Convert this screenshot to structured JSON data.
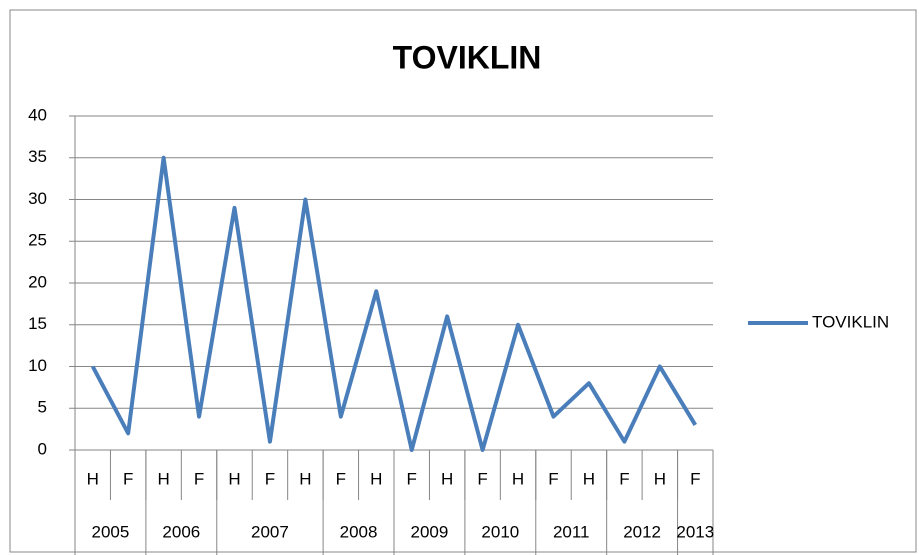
{
  "chart_data": {
    "type": "line",
    "title": "TOVIKLIN",
    "categories": [
      "H",
      "F",
      "H",
      "F",
      "H",
      "F",
      "H",
      "F",
      "H",
      "F",
      "H",
      "F",
      "H",
      "F",
      "H",
      "F",
      "H",
      "F"
    ],
    "category_groups": [
      "2005",
      null,
      "2006",
      null,
      "2007",
      null,
      null,
      "2008",
      null,
      "2009",
      null,
      "2010",
      null,
      "2011",
      null,
      "2012",
      null,
      "2013"
    ],
    "series": [
      {
        "name": "TOVIKLIN",
        "color": "#4a7ebb",
        "values": [
          10,
          2,
          35,
          4,
          29,
          1,
          30,
          4,
          19,
          0,
          16,
          0,
          15,
          4,
          8,
          1,
          10,
          3
        ]
      }
    ],
    "ylim": [
      0,
      40
    ],
    "yticks": [
      0,
      5,
      10,
      15,
      20,
      25,
      30,
      35,
      40
    ],
    "grid": true,
    "legend": "right"
  }
}
